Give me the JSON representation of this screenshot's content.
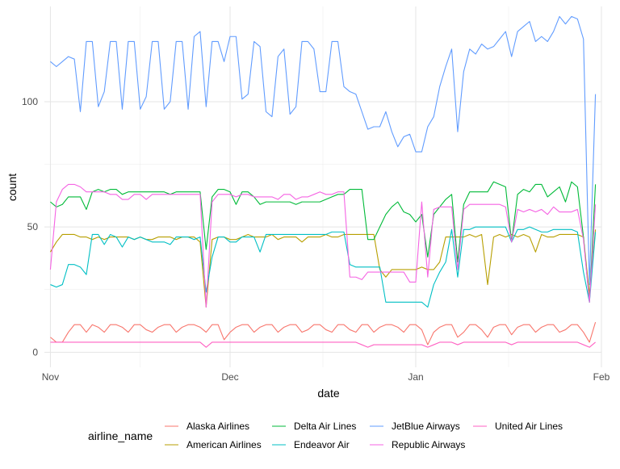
{
  "chart_data": {
    "type": "line",
    "title": "",
    "xlabel": "date",
    "ylabel": "count",
    "x_start": "2013-11-01",
    "x_end": "2014-01-31",
    "xlim": [
      "2013-10-31",
      "2014-02-01"
    ],
    "ylim": [
      -6,
      138
    ],
    "x_ticks": [
      {
        "label": "Nov",
        "date": "2013-11-01"
      },
      {
        "label": "Dec",
        "date": "2013-12-01"
      },
      {
        "label": "Jan",
        "date": "2014-01-01"
      },
      {
        "label": "Feb",
        "date": "2014-02-01"
      }
    ],
    "y_ticks": [
      0,
      50,
      100
    ],
    "grid": true,
    "legend_title": "airline_name",
    "legend_position": "bottom",
    "series": [
      {
        "name": "Alaska Airlines",
        "color": "#F8766D",
        "values": [
          6,
          4,
          4,
          8,
          11,
          11,
          8,
          11,
          10,
          8,
          11,
          11,
          10,
          8,
          11,
          11,
          9,
          8,
          10,
          11,
          11,
          8,
          10,
          11,
          11,
          10,
          8,
          11,
          11,
          5,
          8,
          10,
          11,
          11,
          8,
          10,
          11,
          11,
          8,
          10,
          11,
          11,
          8,
          9,
          11,
          11,
          9,
          8,
          11,
          11,
          9,
          8,
          11,
          11,
          8,
          10,
          11,
          11,
          10,
          8,
          11,
          11,
          9,
          3,
          8,
          10,
          11,
          11,
          6,
          8,
          11,
          11,
          9,
          6,
          10,
          11,
          11,
          7,
          10,
          11,
          11,
          8,
          10,
          11,
          11,
          8,
          9,
          11,
          11,
          8,
          4,
          12
        ]
      },
      {
        "name": "American Airlines",
        "color": "#B79F00",
        "values": [
          40,
          44,
          47,
          47,
          47,
          46,
          46,
          45,
          46,
          45,
          46,
          46,
          46,
          46,
          45,
          46,
          45,
          45,
          46,
          46,
          46,
          45,
          46,
          46,
          46,
          44,
          18,
          45,
          46,
          46,
          45,
          45,
          46,
          47,
          46,
          46,
          46,
          47,
          45,
          46,
          46,
          46,
          44,
          46,
          46,
          46,
          47,
          46,
          46,
          47,
          47,
          47,
          47,
          47,
          47,
          33,
          30,
          33,
          33,
          33,
          33,
          33,
          34,
          33,
          33,
          36,
          46,
          46,
          46,
          46,
          47,
          46,
          47,
          27,
          46,
          47,
          46,
          47,
          46,
          47,
          46,
          40,
          47,
          46,
          46,
          47,
          47,
          47,
          47,
          46,
          23,
          49
        ]
      },
      {
        "name": "Delta Air Lines",
        "color": "#00BA38",
        "values": [
          60,
          58,
          59,
          62,
          62,
          62,
          57,
          64,
          65,
          64,
          65,
          65,
          63,
          64,
          64,
          64,
          64,
          64,
          64,
          64,
          63,
          64,
          64,
          64,
          64,
          64,
          41,
          62,
          65,
          65,
          64,
          59,
          64,
          64,
          62,
          59,
          60,
          60,
          60,
          60,
          60,
          59,
          60,
          60,
          60,
          60,
          61,
          62,
          63,
          63,
          65,
          65,
          65,
          45,
          45,
          50,
          55,
          58,
          60,
          56,
          55,
          52,
          55,
          38,
          55,
          58,
          61,
          63,
          36,
          59,
          64,
          64,
          64,
          64,
          68,
          67,
          66,
          44,
          63,
          65,
          64,
          67,
          67,
          62,
          64,
          66,
          60,
          68,
          66,
          46,
          20,
          67
        ]
      },
      {
        "name": "Endeavor Air",
        "color": "#00BFC4",
        "values": [
          27,
          26,
          27,
          35,
          35,
          34,
          31,
          47,
          47,
          43,
          47,
          46,
          42,
          46,
          45,
          46,
          45,
          44,
          44,
          44,
          43,
          46,
          46,
          46,
          45,
          46,
          24,
          38,
          46,
          46,
          44,
          44,
          46,
          46,
          46,
          40,
          47,
          47,
          47,
          47,
          47,
          47,
          47,
          47,
          47,
          47,
          47,
          48,
          48,
          48,
          35,
          34,
          34,
          34,
          34,
          34,
          20,
          20,
          20,
          20,
          20,
          20,
          20,
          18,
          27,
          32,
          36,
          49,
          30,
          49,
          49,
          50,
          50,
          50,
          50,
          50,
          50,
          44,
          49,
          49,
          50,
          49,
          48,
          48,
          49,
          49,
          49,
          49,
          48,
          32,
          20,
          48
        ]
      },
      {
        "name": "JetBlue Airways",
        "color": "#619CFF",
        "values": [
          116,
          114,
          116,
          118,
          117,
          96,
          124,
          124,
          98,
          104,
          124,
          124,
          97,
          124,
          124,
          97,
          102,
          124,
          124,
          97,
          100,
          124,
          124,
          97,
          126,
          128,
          98,
          124,
          124,
          116,
          126,
          126,
          101,
          103,
          124,
          122,
          96,
          94,
          118,
          121,
          95,
          98,
          124,
          124,
          121,
          104,
          104,
          124,
          124,
          106,
          104,
          103,
          96,
          89,
          90,
          90,
          96,
          88,
          82,
          86,
          87,
          80,
          80,
          90,
          94,
          106,
          114,
          121,
          88,
          112,
          121,
          119,
          123,
          121,
          122,
          125,
          128,
          118,
          128,
          130,
          132,
          124,
          126,
          124,
          128,
          134,
          131,
          134,
          133,
          125,
          27,
          103
        ]
      },
      {
        "name": "Republic Airways",
        "color": "#F564E3",
        "values": [
          33,
          60,
          65,
          67,
          67,
          66,
          64,
          64,
          64,
          64,
          63,
          63,
          61,
          61,
          63,
          63,
          61,
          63,
          63,
          63,
          63,
          63,
          63,
          63,
          63,
          63,
          18,
          60,
          63,
          63,
          63,
          62,
          63,
          63,
          62,
          62,
          62,
          62,
          61,
          63,
          63,
          61,
          62,
          62,
          63,
          64,
          63,
          63,
          64,
          64,
          30,
          30,
          29,
          32,
          32,
          32,
          32,
          32,
          32,
          32,
          28,
          28,
          60,
          30,
          57,
          58,
          58,
          58,
          33,
          57,
          59,
          59,
          59,
          59,
          59,
          59,
          58,
          44,
          57,
          56,
          57,
          56,
          57,
          55,
          58,
          56,
          56,
          56,
          57,
          45,
          20,
          59
        ]
      },
      {
        "name": "United Air Lines",
        "color": "#FF61C3",
        "values": [
          4,
          4,
          4,
          4,
          4,
          4,
          4,
          4,
          4,
          4,
          4,
          4,
          4,
          4,
          4,
          4,
          4,
          4,
          4,
          4,
          4,
          4,
          4,
          4,
          4,
          4,
          2,
          4,
          4,
          4,
          4,
          4,
          4,
          4,
          4,
          4,
          4,
          4,
          4,
          4,
          4,
          4,
          4,
          4,
          4,
          4,
          4,
          4,
          4,
          4,
          4,
          4,
          3,
          2,
          3,
          3,
          3,
          3,
          3,
          3,
          3,
          3,
          3,
          2,
          3,
          4,
          4,
          4,
          3,
          4,
          4,
          4,
          4,
          4,
          4,
          4,
          4,
          3,
          4,
          4,
          4,
          4,
          4,
          4,
          4,
          4,
          4,
          4,
          4,
          3,
          2,
          4
        ]
      }
    ]
  }
}
